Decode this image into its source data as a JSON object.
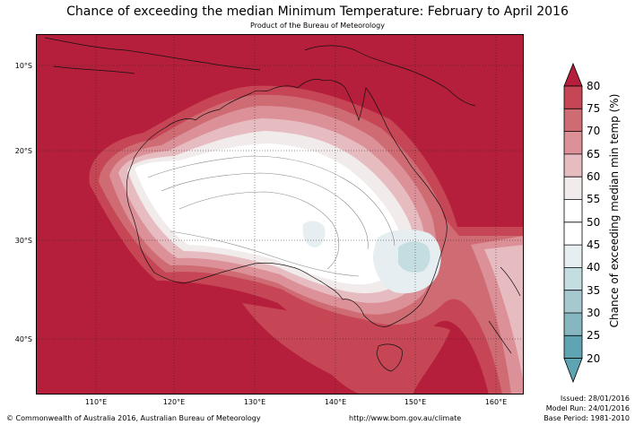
{
  "title": "Chance of exceeding the median Minimum Temperature: February to April 2016",
  "subtitle": "Product of the Bureau of Meteorology",
  "map": {
    "lat_labels": [
      "10°S",
      "20°S",
      "30°S",
      "40°S"
    ],
    "lon_labels": [
      "110°E",
      "120°E",
      "130°E",
      "140°E",
      "150°E",
      "160°E"
    ]
  },
  "colorbar": {
    "label": "Chance of exceeding median min temp (%)",
    "ticks": [
      "80",
      "75",
      "70",
      "65",
      "60",
      "55",
      "50",
      "45",
      "40",
      "35",
      "30",
      "25",
      "20"
    ],
    "colors": {
      "above_80": "#b51f3b",
      "75_80": "#c64655",
      "70_75": "#cf6c73",
      "65_70": "#dc9098",
      "60_65": "#e7bcc1",
      "55_60": "#f1eceb",
      "50_55": "#ffffff",
      "45_50": "#ffffff",
      "40_45": "#e6eef1",
      "35_40": "#c4dde0",
      "30_35": "#a6c9d0",
      "25_30": "#86b7c1",
      "20_25": "#5fa4b3"
    }
  },
  "footer": {
    "copyright": "© Commonwealth of Australia 2016, Australian Bureau of Meteorology",
    "url": "http://www.bom.gov.au/climate",
    "issued": "Issued: 28/01/2016",
    "model_run": "Model Run: 24/01/2016",
    "base_period": "Base Period: 1981-2010"
  }
}
